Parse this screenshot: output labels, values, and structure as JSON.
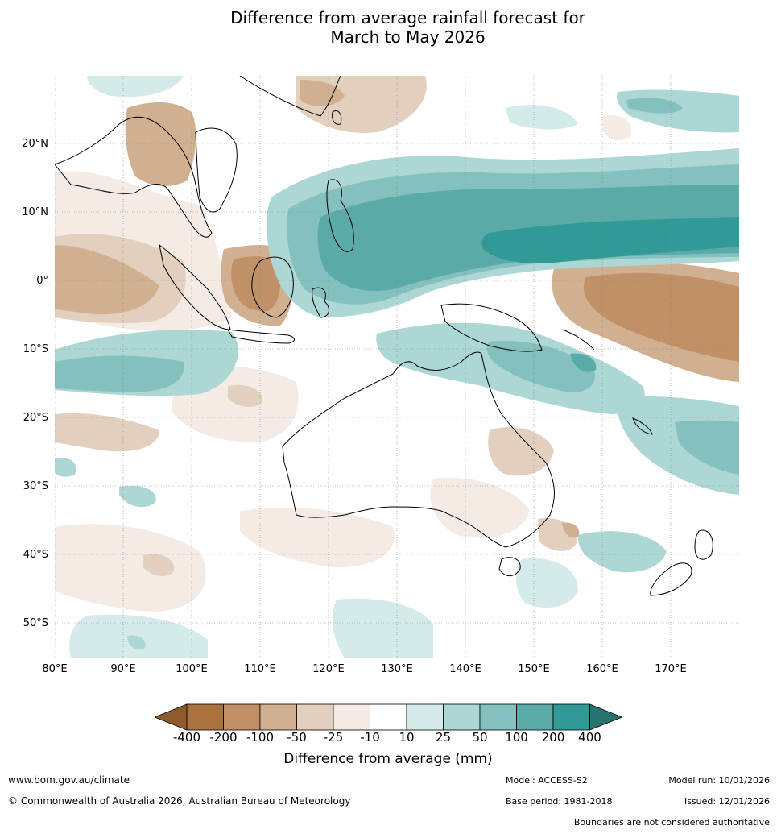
{
  "title_line1": "Difference from average rainfall forecast for",
  "title_line2": "March to May 2026",
  "lat_labels": [
    "20°N",
    "10°N",
    "0°",
    "10°S",
    "20°S",
    "30°S",
    "40°S",
    "50°S"
  ],
  "lon_labels": [
    "80°E",
    "90°E",
    "100°E",
    "110°E",
    "120°E",
    "130°E",
    "140°E",
    "150°E",
    "160°E",
    "170°E"
  ],
  "colorbar": {
    "ticks": [
      "-400",
      "-200",
      "-100",
      "-50",
      "-25",
      "-10",
      "10",
      "25",
      "50",
      "100",
      "200",
      "400"
    ],
    "colors": [
      "#8c5a2b",
      "#ab723e",
      "#c09066",
      "#d1b091",
      "#e3cfbd",
      "#f3ebe4",
      "#ffffff",
      "#d5ebe9",
      "#acd7d5",
      "#83c0be",
      "#5aaaa8",
      "#319996",
      "#267370"
    ],
    "label": "Difference from average (mm)"
  },
  "footer": {
    "website": "www.bom.gov.au/climate",
    "copyright": "© Commonwealth of Australia 2026, Australian Bureau of Meteorology",
    "model": "Model: ACCESS-S2",
    "base_period": "Base period: 1981-2018",
    "model_run": "Model run: 10/01/2026",
    "issued": "Issued: 12/01/2026",
    "disclaimer": "Boundaries are not considered authoritative"
  }
}
